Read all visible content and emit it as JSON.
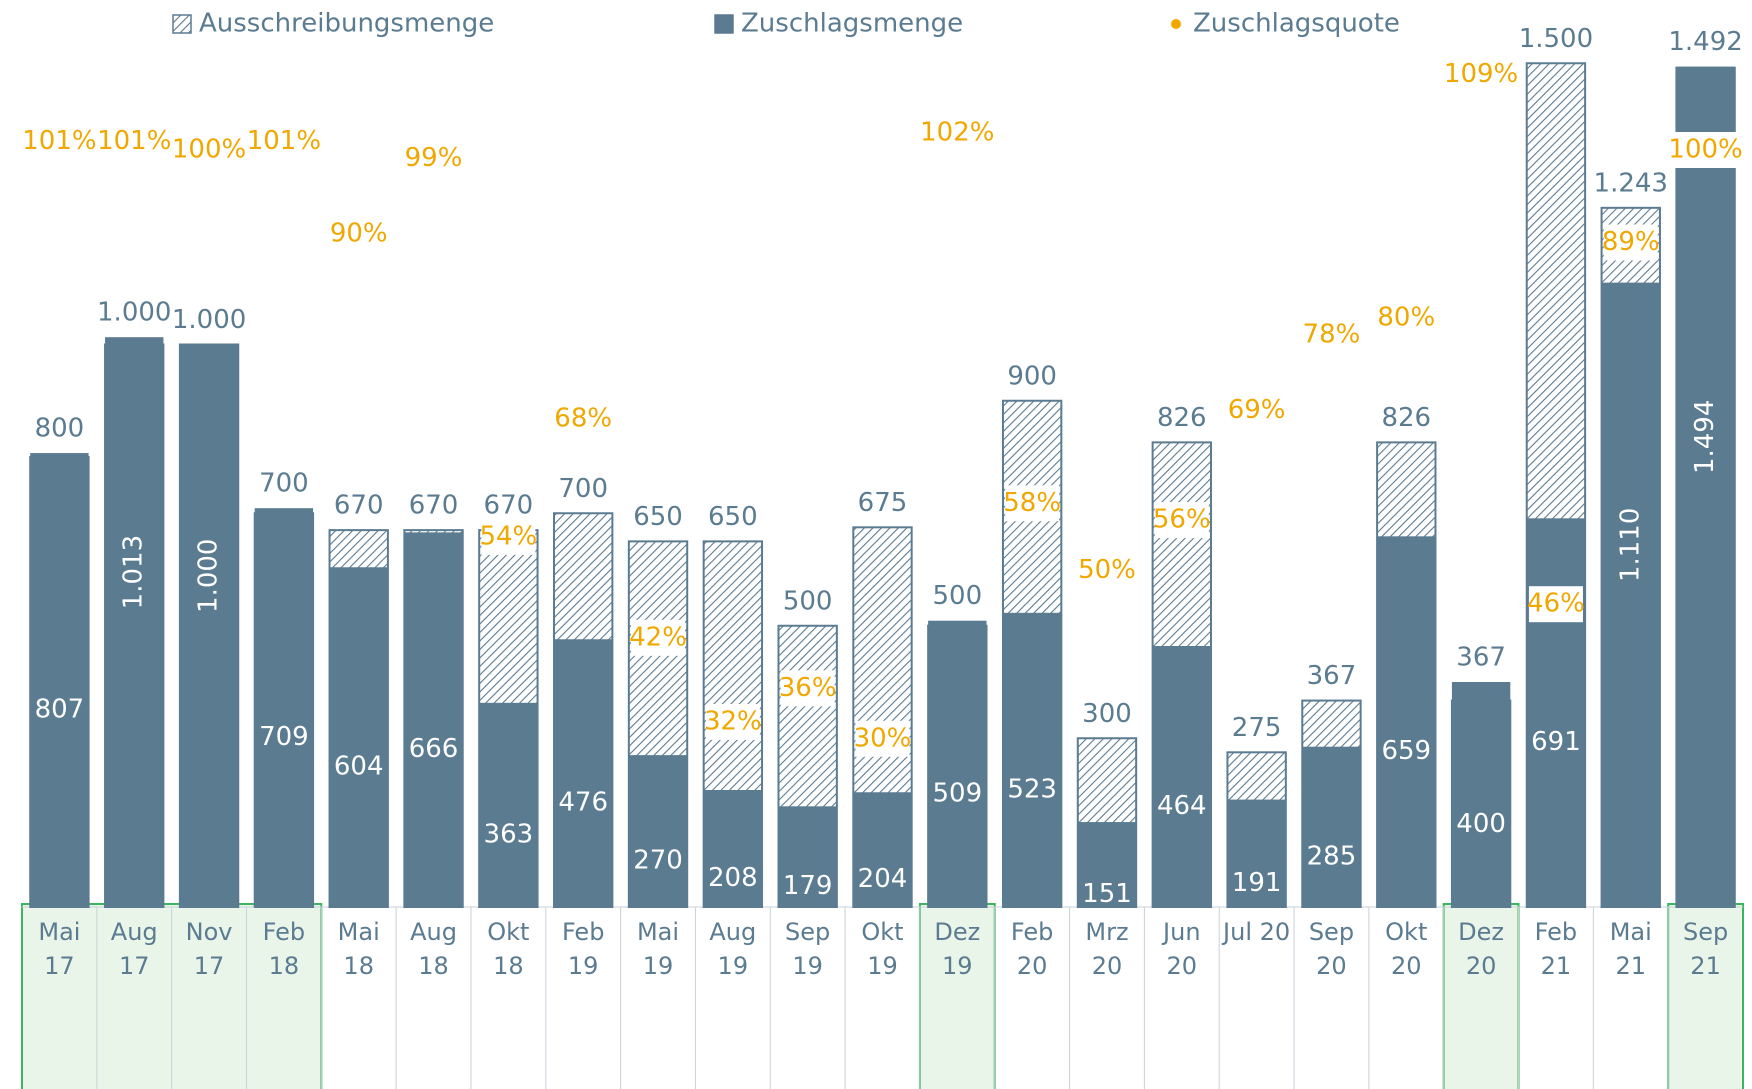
{
  "chart_data": {
    "type": "bar",
    "categories": [
      "Mai\n17",
      "Aug\n17",
      "Nov\n17",
      "Feb\n18",
      "Mai\n18",
      "Aug\n18",
      "Okt\n18",
      "Feb\n19",
      "Mai\n19",
      "Aug\n19",
      "Sep\n19",
      "Okt\n19",
      "Dez\n19",
      "Feb\n20",
      "Mrz\n20",
      "Jun\n20",
      "Jul 20",
      "Sep\n20",
      "Okt\n20",
      "Dez\n20",
      "Feb\n21",
      "Mai\n21",
      "Sep\n21"
    ],
    "series": [
      {
        "name": "Ausschreibungsmenge",
        "color": "#5b7b91",
        "pattern": "hatch",
        "values": [
          800,
          1000,
          1000,
          700,
          670,
          670,
          670,
          700,
          650,
          650,
          500,
          675,
          500,
          900,
          300,
          826,
          275,
          367,
          826,
          367,
          1500,
          1243,
          1492
        ],
        "value_labels": [
          "800",
          "1.000",
          "1.000",
          "700",
          "670",
          "670",
          "670",
          "700",
          "650",
          "650",
          "500",
          "675",
          "500",
          "900",
          "300",
          "826",
          "275",
          "367",
          "826",
          "367",
          "1.500",
          "1.243",
          "1.492"
        ]
      },
      {
        "name": "Zuschlagsmenge",
        "color": "#5b7b91",
        "values": [
          807,
          1013,
          1000,
          709,
          604,
          666,
          363,
          476,
          270,
          208,
          179,
          204,
          509,
          523,
          151,
          464,
          191,
          285,
          659,
          400,
          691,
          1110,
          1494
        ],
        "value_labels": [
          "807",
          "1.013",
          "1.000",
          "709",
          "604",
          "666",
          "363",
          "476",
          "270",
          "208",
          "179",
          "204",
          "509",
          "523",
          "151",
          "464",
          "191",
          "285",
          "659",
          "400",
          "691",
          "1.110",
          "1.494"
        ]
      },
      {
        "name": "Zuschlagsquote",
        "color": "#f0a800",
        "axis": "y2",
        "values": [
          101,
          101,
          100,
          101,
          90,
          99,
          54,
          68,
          42,
          32,
          36,
          30,
          102,
          58,
          50,
          56,
          69,
          78,
          80,
          109,
          46,
          89,
          100
        ],
        "value_labels": [
          "101%",
          "101%",
          "100%",
          "101%",
          "90%",
          "99%",
          "54%",
          "68%",
          "42%",
          "32%",
          "36%",
          "30%",
          "102%",
          "58%",
          "50%",
          "56%",
          "69%",
          "78%",
          "80%",
          "109%",
          "46%",
          "89%",
          "100%"
        ]
      }
    ],
    "ylim": [
      0,
      1600
    ],
    "y2lim": [
      10,
      117
    ],
    "highlight_groups": [
      [
        0,
        3
      ],
      [
        12,
        12
      ],
      [
        19,
        19
      ],
      [
        22,
        22
      ]
    ],
    "highlight_color": "#3cb55e"
  }
}
